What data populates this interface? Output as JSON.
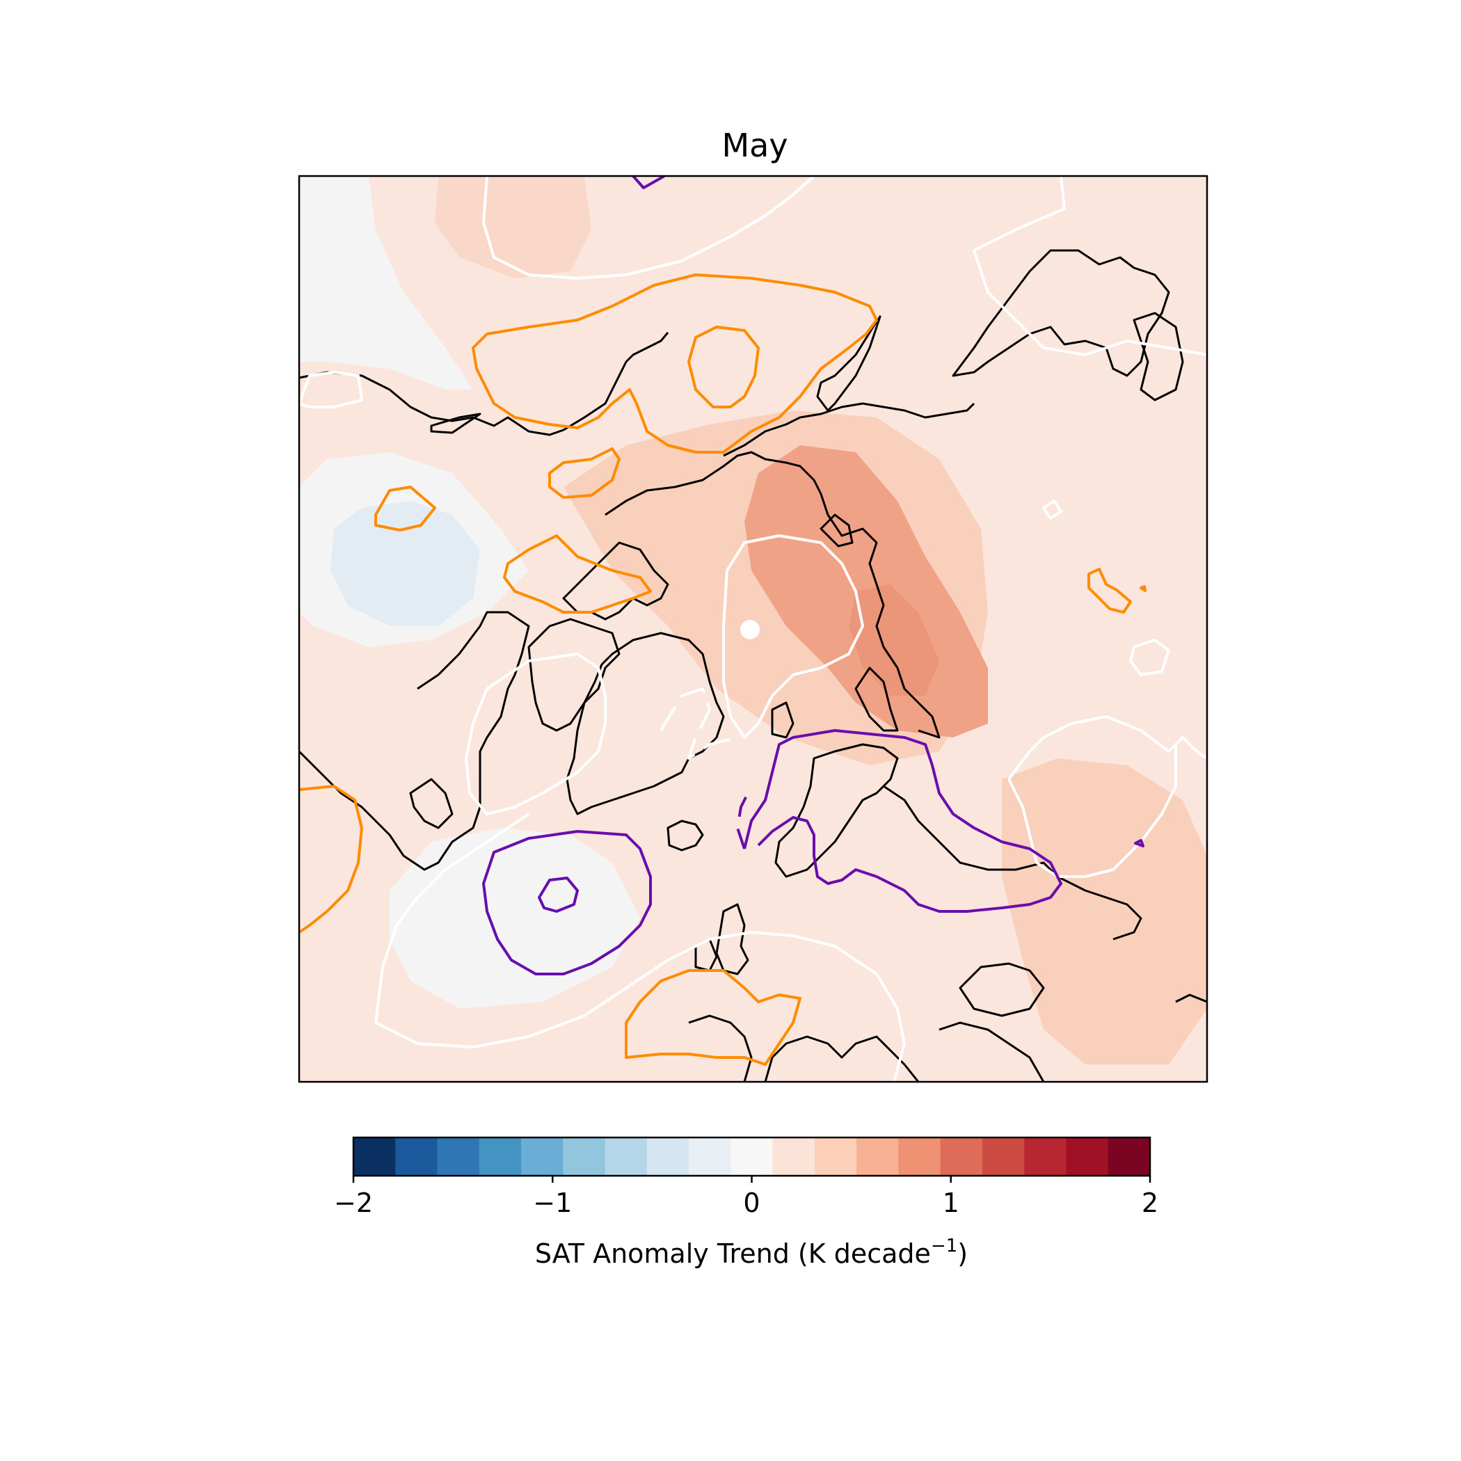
{
  "title": "May",
  "colorbar": {
    "label_main": "SAT Anomaly Trend (K decade",
    "label_sup": "−1",
    "label_close": ")",
    "range": [
      -2,
      2
    ],
    "ticks": [
      {
        "value": -2,
        "label": "−2"
      },
      {
        "value": -1,
        "label": "−1"
      },
      {
        "value": 0,
        "label": "0"
      },
      {
        "value": 1,
        "label": "1"
      },
      {
        "value": 2,
        "label": "2"
      }
    ],
    "colors": [
      "#0a3162",
      "#1c5a9e",
      "#2f76b4",
      "#4393c3",
      "#6aaed6",
      "#92c5de",
      "#b5d6e8",
      "#d4e6f1",
      "#e8eff5",
      "#f7f7f7",
      "#fbe3d8",
      "#fbcfb8",
      "#f7b092",
      "#ef9173",
      "#df6c58",
      "#cc4c44",
      "#b72631",
      "#a01125",
      "#7b0422"
    ]
  },
  "contour_colors": {
    "orange": "#ff8c00",
    "purple": "#6a0dad",
    "white": "#ffffff",
    "coast": "#000000"
  }
}
